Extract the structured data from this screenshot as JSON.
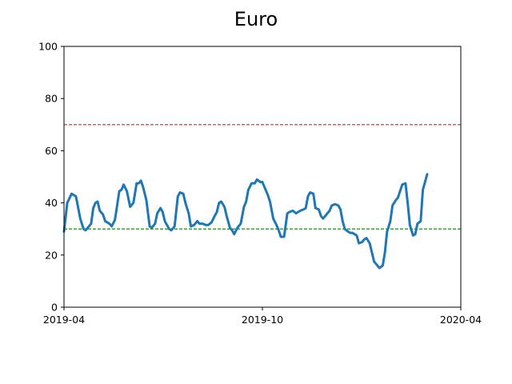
{
  "chart_data": {
    "type": "line",
    "title": "Euro",
    "xlabel": "",
    "ylabel": "",
    "x_range": [
      "2019-04-01",
      "2020-04-01"
    ],
    "ylim": [
      0,
      100
    ],
    "x_ticks": [
      {
        "date": "2019-04-01",
        "label": "2019-04"
      },
      {
        "date": "2019-10-01",
        "label": "2019-10"
      },
      {
        "date": "2020-04-01",
        "label": "2020-04"
      }
    ],
    "y_ticks": [
      0,
      20,
      40,
      60,
      80,
      100
    ],
    "grid": false,
    "legend": "none",
    "reference_lines": [
      {
        "y": 70,
        "color": "#d62728",
        "style": "dashed"
      },
      {
        "y": 30,
        "color": "#008000",
        "style": "dashed"
      }
    ],
    "series": [
      {
        "color": "#1f77b4",
        "points": [
          [
            "2019-04-01",
            29
          ],
          [
            "2019-04-04",
            40
          ],
          [
            "2019-04-08",
            43.5
          ],
          [
            "2019-04-12",
            42.5
          ],
          [
            "2019-04-16",
            34
          ],
          [
            "2019-04-19",
            30
          ],
          [
            "2019-04-21",
            29.5
          ],
          [
            "2019-04-23",
            30.5
          ],
          [
            "2019-04-26",
            32
          ],
          [
            "2019-04-28",
            38
          ],
          [
            "2019-04-30",
            40
          ],
          [
            "2019-05-02",
            40.5
          ],
          [
            "2019-05-04",
            37
          ],
          [
            "2019-05-07",
            35.5
          ],
          [
            "2019-05-09",
            33
          ],
          [
            "2019-05-13",
            32
          ],
          [
            "2019-05-15",
            31
          ],
          [
            "2019-05-18",
            33.5
          ],
          [
            "2019-05-22",
            44.5
          ],
          [
            "2019-05-24",
            45
          ],
          [
            "2019-05-26",
            47
          ],
          [
            "2019-05-29",
            44.5
          ],
          [
            "2019-06-01",
            38.5
          ],
          [
            "2019-06-04",
            40
          ],
          [
            "2019-06-07",
            47.5
          ],
          [
            "2019-06-09",
            47.5
          ],
          [
            "2019-06-11",
            48.5
          ],
          [
            "2019-06-13",
            46
          ],
          [
            "2019-06-16",
            41
          ],
          [
            "2019-06-19",
            31
          ],
          [
            "2019-06-21",
            30.5
          ],
          [
            "2019-06-24",
            32
          ],
          [
            "2019-06-26",
            36
          ],
          [
            "2019-06-29",
            38
          ],
          [
            "2019-07-01",
            36.5
          ],
          [
            "2019-07-03",
            33
          ],
          [
            "2019-07-07",
            30
          ],
          [
            "2019-07-09",
            29.5
          ],
          [
            "2019-07-12",
            31
          ],
          [
            "2019-07-15",
            42.5
          ],
          [
            "2019-07-17",
            44
          ],
          [
            "2019-07-20",
            43.5
          ],
          [
            "2019-07-22",
            40
          ],
          [
            "2019-07-25",
            36
          ],
          [
            "2019-07-27",
            31
          ],
          [
            "2019-07-30",
            31.5
          ],
          [
            "2019-08-02",
            33
          ],
          [
            "2019-08-04",
            32
          ],
          [
            "2019-08-07",
            32
          ],
          [
            "2019-08-10",
            31.5
          ],
          [
            "2019-08-12",
            31.5
          ],
          [
            "2019-08-15",
            32.5
          ],
          [
            "2019-08-18",
            35
          ],
          [
            "2019-08-20",
            36.5
          ],
          [
            "2019-08-22",
            40
          ],
          [
            "2019-08-24",
            40.5
          ],
          [
            "2019-08-27",
            38.5
          ],
          [
            "2019-08-29",
            35
          ],
          [
            "2019-09-01",
            30.5
          ],
          [
            "2019-09-03",
            29.5
          ],
          [
            "2019-09-05",
            28
          ],
          [
            "2019-09-08",
            30.5
          ],
          [
            "2019-09-11",
            32
          ],
          [
            "2019-09-14",
            38.5
          ],
          [
            "2019-09-16",
            40.5
          ],
          [
            "2019-09-18",
            45
          ],
          [
            "2019-09-21",
            47.5
          ],
          [
            "2019-09-24",
            47.5
          ],
          [
            "2019-09-26",
            49
          ],
          [
            "2019-09-29",
            48
          ],
          [
            "2019-10-01",
            48
          ],
          [
            "2019-10-03",
            46
          ],
          [
            "2019-10-06",
            43
          ],
          [
            "2019-10-08",
            40.5
          ],
          [
            "2019-10-11",
            34
          ],
          [
            "2019-10-14",
            31.5
          ],
          [
            "2019-10-16",
            29.5
          ],
          [
            "2019-10-18",
            27
          ],
          [
            "2019-10-21",
            27
          ],
          [
            "2019-10-24",
            36
          ],
          [
            "2019-10-26",
            36.5
          ],
          [
            "2019-10-29",
            37
          ],
          [
            "2019-11-01",
            36
          ],
          [
            "2019-11-05",
            37
          ],
          [
            "2019-11-08",
            37.5
          ],
          [
            "2019-11-10",
            38
          ],
          [
            "2019-11-12",
            42.5
          ],
          [
            "2019-11-14",
            44
          ],
          [
            "2019-11-17",
            43.5
          ],
          [
            "2019-11-19",
            38
          ],
          [
            "2019-11-22",
            37.5
          ],
          [
            "2019-11-24",
            35
          ],
          [
            "2019-11-26",
            34
          ],
          [
            "2019-11-29",
            35.5
          ],
          [
            "2019-12-02",
            37
          ],
          [
            "2019-12-04",
            39
          ],
          [
            "2019-12-07",
            39.5
          ],
          [
            "2019-12-10",
            39
          ],
          [
            "2019-12-12",
            37.5
          ],
          [
            "2019-12-14",
            33
          ],
          [
            "2019-12-16",
            30
          ],
          [
            "2019-12-19",
            29
          ],
          [
            "2019-12-21",
            28.5
          ],
          [
            "2019-12-23",
            28.5
          ],
          [
            "2019-12-25",
            28
          ],
          [
            "2019-12-27",
            27.5
          ],
          [
            "2019-12-29",
            24.5
          ],
          [
            "2020-01-01",
            25
          ],
          [
            "2020-01-03",
            26
          ],
          [
            "2020-01-05",
            26.5
          ],
          [
            "2020-01-08",
            24.5
          ],
          [
            "2020-01-10",
            21
          ],
          [
            "2020-01-12",
            17.5
          ],
          [
            "2020-01-14",
            16.5
          ],
          [
            "2020-01-17",
            15
          ],
          [
            "2020-01-20",
            16
          ],
          [
            "2020-01-22",
            21
          ],
          [
            "2020-01-24",
            29
          ],
          [
            "2020-01-27",
            33
          ],
          [
            "2020-01-29",
            39
          ],
          [
            "2020-02-01",
            41
          ],
          [
            "2020-02-03",
            42
          ],
          [
            "2020-02-05",
            44.5
          ],
          [
            "2020-02-07",
            47
          ],
          [
            "2020-02-10",
            47.5
          ],
          [
            "2020-02-12",
            40
          ],
          [
            "2020-02-14",
            31.5
          ],
          [
            "2020-02-17",
            27.5
          ],
          [
            "2020-02-19",
            28
          ],
          [
            "2020-02-21",
            32
          ],
          [
            "2020-02-24",
            33
          ],
          [
            "2020-02-26",
            45
          ],
          [
            "2020-03-01",
            51
          ]
        ]
      }
    ]
  }
}
